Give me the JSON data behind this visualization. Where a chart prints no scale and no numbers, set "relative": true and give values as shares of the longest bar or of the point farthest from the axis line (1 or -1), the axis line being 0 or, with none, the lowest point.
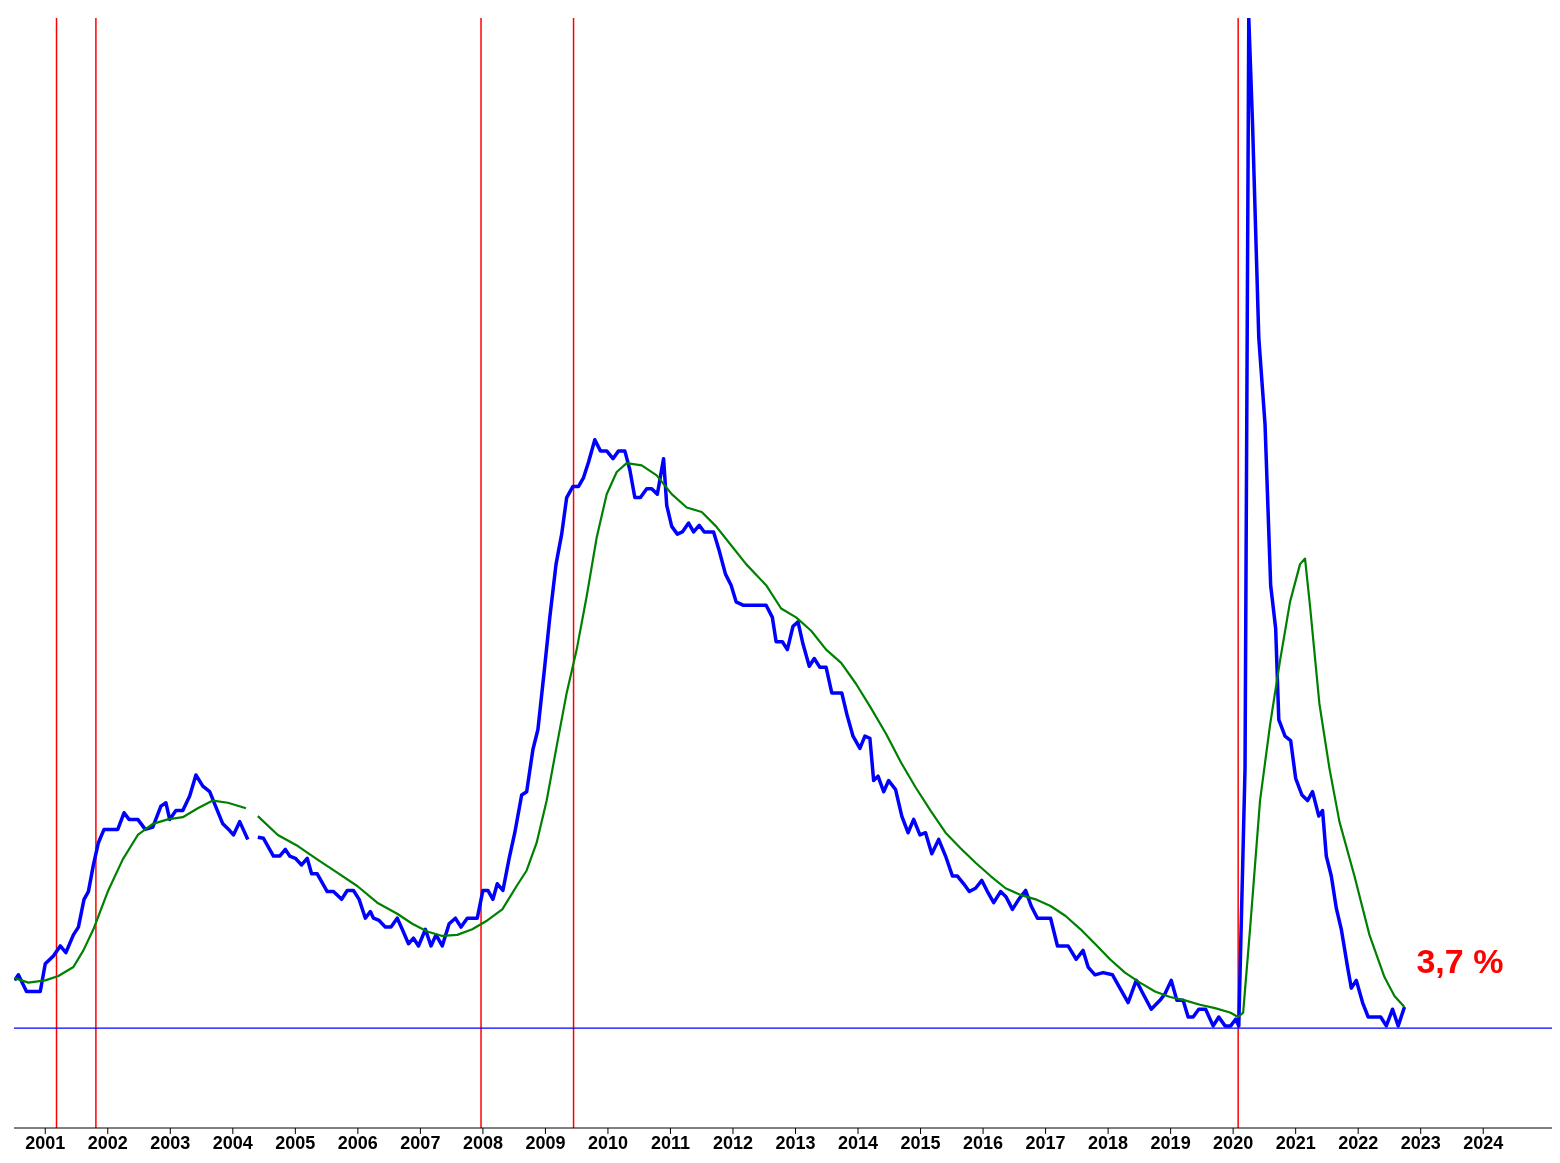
{
  "chart_data": {
    "type": "line",
    "relative": true,
    "tick_labels": "x",
    "xlim": [
      2000.5,
      2025.1
    ],
    "xticks": [
      2001,
      2002,
      2003,
      2004,
      2005,
      2006,
      2007,
      2008,
      2009,
      2010,
      2011,
      2012,
      2013,
      2014,
      2015,
      2016,
      2017,
      2018,
      2019,
      2020,
      2021,
      2022,
      2023,
      2024
    ],
    "series": [
      {
        "color": "#0000ff",
        "x": [
          2000.51,
          2000.57,
          2000.7,
          2000.92,
          2001.0,
          2001.13,
          2001.24,
          2001.33,
          2001.45,
          2001.53,
          2001.62,
          2001.69,
          2001.77,
          2001.85,
          2001.94,
          2002.16,
          2002.26,
          2002.34,
          2002.48,
          2002.6,
          2002.72,
          2002.85,
          2002.93,
          2002.99,
          2003.09,
          2003.2,
          2003.31,
          2003.41,
          2003.52,
          2003.63,
          2003.73,
          2003.84,
          2003.95,
          2004.01,
          2004.11,
          2004.24,
          2004.32,
          2004.4,
          2004.49,
          2004.65,
          2004.75,
          2004.84,
          2004.91,
          2005.0,
          2005.1,
          2005.19,
          2005.26,
          2005.35,
          2005.51,
          2005.61,
          2005.74,
          2005.83,
          2005.93,
          2006.02,
          2006.12,
          2006.2,
          2006.25,
          2006.34,
          2006.44,
          2006.53,
          2006.63,
          2006.71,
          2006.81,
          2006.89,
          2006.97,
          2007.08,
          2007.17,
          2007.25,
          2007.35,
          2007.46,
          2007.56,
          2007.65,
          2007.75,
          2007.91,
          2008.0,
          2008.08,
          2008.16,
          2008.23,
          2008.32,
          2008.42,
          2008.51,
          2008.62,
          2008.7,
          2008.8,
          2008.88,
          2008.98,
          2009.07,
          2009.17,
          2009.26,
          2009.34,
          2009.44,
          2009.53,
          2009.61,
          2009.69,
          2009.79,
          2009.88,
          2009.98,
          2010.08,
          2010.17,
          2010.27,
          2010.35,
          2010.43,
          2010.52,
          2010.62,
          2010.7,
          2010.79,
          2010.89,
          2010.94,
          2011.02,
          2011.11,
          2011.19,
          2011.29,
          2011.37,
          2011.46,
          2011.54,
          2011.69,
          2011.78,
          2011.88,
          2011.97,
          2012.05,
          2012.16,
          2012.53,
          2012.63,
          2012.69,
          2012.79,
          2012.87,
          2012.96,
          2013.04,
          2013.12,
          2013.22,
          2013.3,
          2013.39,
          2013.49,
          2013.58,
          2013.74,
          2013.82,
          2013.92,
          2014.03,
          2014.11,
          2014.19,
          2014.25,
          2014.32,
          2014.41,
          2014.49,
          2014.6,
          2014.7,
          2014.8,
          2014.89,
          2014.99,
          2015.08,
          2015.18,
          2015.29,
          2015.4,
          2015.51,
          2015.59,
          2015.69,
          2015.78,
          2015.88,
          2015.98,
          2016.07,
          2016.17,
          2016.28,
          2016.37,
          2016.47,
          2016.57,
          2016.68,
          2016.77,
          2016.87,
          2017.08,
          2017.19,
          2017.36,
          2017.49,
          2017.6,
          2017.68,
          2017.79,
          2017.92,
          2018.07,
          2018.18,
          2018.32,
          2018.45,
          2018.54,
          2018.69,
          2018.83,
          2018.91,
          2019.01,
          2019.1,
          2019.2,
          2019.28,
          2019.36,
          2019.45,
          2019.56,
          2019.68,
          2019.77,
          2019.87,
          2019.96,
          2020.04,
          2020.09,
          2020.19,
          2020.25,
          2020.31,
          2020.41,
          2020.51,
          2020.6,
          2020.68,
          2020.73,
          2020.83,
          2020.92,
          2021.0,
          2021.1,
          2021.19,
          2021.27,
          2021.37,
          2021.43,
          2021.49,
          2021.57,
          2021.65,
          2021.73,
          2021.83,
          2021.89,
          2021.97,
          2022.07,
          2022.16,
          2022.36,
          2022.45,
          2022.55,
          2022.64,
          2022.74
        ],
        "values": [
          0.133,
          0.138,
          0.123,
          0.123,
          0.148,
          0.155,
          0.164,
          0.158,
          0.174,
          0.181,
          0.206,
          0.213,
          0.237,
          0.257,
          0.269,
          0.269,
          0.284,
          0.278,
          0.278,
          0.269,
          0.271,
          0.29,
          0.293,
          0.278,
          0.286,
          0.286,
          0.299,
          0.318,
          0.308,
          0.303,
          0.289,
          0.274,
          0.268,
          0.264,
          0.276,
          0.26,
          null,
          0.262,
          0.261,
          0.245,
          0.245,
          0.251,
          0.245,
          0.243,
          0.237,
          0.243,
          0.229,
          0.229,
          0.213,
          0.213,
          0.206,
          0.214,
          0.214,
          0.206,
          0.189,
          0.195,
          0.189,
          0.187,
          0.181,
          0.181,
          0.189,
          0.179,
          0.166,
          0.171,
          0.164,
          0.179,
          0.164,
          0.174,
          0.164,
          0.184,
          0.189,
          0.181,
          0.189,
          0.189,
          0.214,
          0.214,
          0.206,
          0.22,
          0.214,
          0.243,
          0.266,
          0.3,
          0.303,
          0.341,
          0.359,
          0.411,
          0.46,
          0.508,
          0.535,
          0.568,
          0.578,
          0.578,
          0.586,
          0.6,
          0.62,
          0.61,
          0.61,
          0.603,
          0.61,
          0.61,
          0.593,
          0.568,
          0.568,
          0.576,
          0.576,
          0.571,
          0.603,
          0.561,
          0.542,
          0.535,
          0.537,
          0.545,
          0.537,
          0.543,
          0.537,
          0.537,
          0.52,
          0.499,
          0.489,
          0.474,
          0.471,
          0.471,
          0.46,
          0.438,
          0.438,
          0.431,
          0.452,
          0.456,
          0.436,
          0.416,
          0.423,
          0.415,
          0.415,
          0.392,
          0.392,
          0.373,
          0.353,
          0.342,
          0.353,
          0.351,
          0.313,
          0.317,
          0.303,
          0.313,
          0.305,
          0.281,
          0.266,
          0.278,
          0.264,
          0.266,
          0.247,
          0.26,
          0.245,
          0.227,
          0.227,
          0.22,
          0.213,
          0.216,
          0.223,
          0.213,
          0.203,
          0.213,
          0.208,
          0.197,
          0.206,
          0.214,
          0.2,
          0.189,
          0.189,
          0.164,
          0.164,
          0.152,
          0.16,
          0.145,
          0.138,
          0.14,
          0.138,
          0.127,
          0.113,
          0.133,
          0.123,
          0.107,
          0.115,
          0.121,
          0.133,
          0.115,
          0.115,
          0.1,
          0.1,
          0.107,
          0.107,
          0.092,
          0.1,
          0.092,
          0.092,
          0.098,
          0.092,
          0.324,
          1,
          0.905,
          0.712,
          0.634,
          0.489,
          0.45,
          0.368,
          0.353,
          0.349,
          0.315,
          0.3,
          0.295,
          0.303,
          0.281,
          0.286,
          0.245,
          0.227,
          0.198,
          0.179,
          0.145,
          0.126,
          0.133,
          0.113,
          0.1,
          0.1,
          0.092,
          0.107,
          0.092,
          0.109
        ]
      },
      {
        "color": "#008000",
        "x": [
          2000.51,
          2000.73,
          2001.0,
          2001.21,
          2001.45,
          2001.61,
          2001.77,
          2002.0,
          2002.24,
          2002.48,
          2002.72,
          2002.96,
          2003.2,
          2003.44,
          2003.68,
          2003.92,
          2004.21,
          2004.3,
          2004.4,
          2004.72,
          2005.04,
          2005.35,
          2005.67,
          2005.99,
          2006.31,
          2006.63,
          2006.87,
          2007.11,
          2007.35,
          2007.59,
          2007.83,
          2008.07,
          2008.31,
          2008.54,
          2008.7,
          2008.86,
          2009.02,
          2009.18,
          2009.34,
          2009.5,
          2009.66,
          2009.82,
          2009.98,
          2010.14,
          2010.3,
          2010.54,
          2010.78,
          2011.02,
          2011.26,
          2011.5,
          2011.73,
          2011.97,
          2012.21,
          2012.53,
          2012.77,
          2013.01,
          2013.25,
          2013.49,
          2013.73,
          2013.97,
          2014.21,
          2014.45,
          2014.69,
          2014.92,
          2015.16,
          2015.4,
          2015.64,
          2015.88,
          2016.12,
          2016.36,
          2016.6,
          2016.84,
          2017.08,
          2017.32,
          2017.56,
          2017.79,
          2018.03,
          2018.27,
          2018.51,
          2018.75,
          2018.99,
          2019.23,
          2019.47,
          2019.71,
          2019.95,
          2020.08,
          2020.16,
          2020.27,
          2020.43,
          2020.59,
          2020.75,
          2020.91,
          2021.07,
          2021.15,
          2021.23,
          2021.38,
          2021.54,
          2021.7,
          2021.94,
          2022.18,
          2022.42,
          2022.58,
          2022.74
        ],
        "values": [
          0.135,
          0.131,
          0.133,
          0.137,
          0.145,
          0.16,
          0.179,
          0.213,
          0.242,
          0.264,
          0.274,
          0.278,
          0.28,
          0.288,
          0.295,
          0.293,
          0.288,
          null,
          0.281,
          0.264,
          0.254,
          0.242,
          0.23,
          0.218,
          0.203,
          0.193,
          0.184,
          0.177,
          0.173,
          0.174,
          0.179,
          0.187,
          0.197,
          0.218,
          0.232,
          0.257,
          0.295,
          0.344,
          0.392,
          0.431,
          0.479,
          0.532,
          0.571,
          0.591,
          0.599,
          0.597,
          0.588,
          0.571,
          0.559,
          0.555,
          0.542,
          0.525,
          0.508,
          0.489,
          0.468,
          0.46,
          0.448,
          0.431,
          0.419,
          0.4,
          0.378,
          0.355,
          0.329,
          0.307,
          0.286,
          0.266,
          0.252,
          0.239,
          0.227,
          0.216,
          0.21,
          0.206,
          0.2,
          0.191,
          0.179,
          0.166,
          0.152,
          0.14,
          0.131,
          0.123,
          0.118,
          0.115,
          0.111,
          0.108,
          0.104,
          0.1,
          0.104,
          0.179,
          0.295,
          0.363,
          0.421,
          0.474,
          0.508,
          0.513,
          0.47,
          0.382,
          0.324,
          0.276,
          0.227,
          0.174,
          0.136,
          0.119,
          0.109
        ]
      }
    ],
    "ref_lines": [
      {
        "axis": "x",
        "value": 2001.18,
        "color": "#ff0000"
      },
      {
        "axis": "x",
        "value": 2001.81,
        "color": "#ff0000"
      },
      {
        "axis": "x",
        "value": 2007.97,
        "color": "#ff0000"
      },
      {
        "axis": "x",
        "value": 2009.45,
        "color": "#ff0000"
      },
      {
        "axis": "x",
        "value": 2020.08,
        "color": "#ff0000"
      },
      {
        "axis": "y",
        "value": 0.09,
        "color": "#0000ff"
      }
    ],
    "annotations": [
      {
        "text": "3,7 %",
        "x": 2022.74,
        "y": 0.109
      }
    ]
  }
}
